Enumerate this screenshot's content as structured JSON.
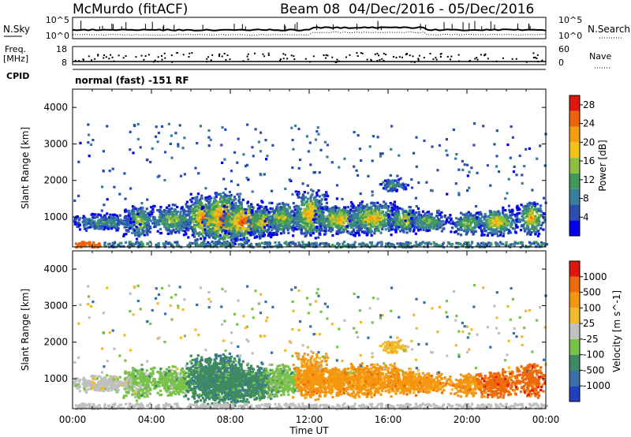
{
  "header": {
    "station": "McMurdo (fitACF)",
    "beam_title": "Beam 08  04/Dec/2016 - 05/Dec/2016",
    "mode": "normal (fast) -151 RF"
  },
  "side_labels": {
    "nsky": "N.Sky",
    "nsearch": "N.Search",
    "freq": "Freq.",
    "mhz": "[MHz]",
    "nave": "Nave",
    "cpid": "CPID"
  },
  "noise_ticks": {
    "left_top": "10^5",
    "left_bottom": "10^0",
    "right_top": "10^5",
    "right_bottom": "10^0"
  },
  "freq_ticks": {
    "left_top": "18",
    "left_bottom": "8",
    "right_top": "60",
    "right_bottom": "0"
  },
  "chart_data": [
    {
      "type": "heatmap",
      "name": "power",
      "xlabel": "Time UT",
      "ylabel": "Slant Range [km]",
      "xlim": [
        "00:00",
        "24:00"
      ],
      "ylim": [
        180,
        4500
      ],
      "x_ticks": [
        "00:00",
        "04:00",
        "08:00",
        "12:00",
        "16:00",
        "20:00",
        "00:00"
      ],
      "y_ticks": [
        1000,
        2000,
        3000,
        4000
      ],
      "colorbar": {
        "label": "Power [dB]",
        "ticks": [
          4,
          8,
          12,
          16,
          20,
          24,
          28
        ],
        "range": [
          0,
          30
        ],
        "colors": [
          "#0000ee",
          "#2a4fb0",
          "#3a7e9e",
          "#3f9a5a",
          "#8cbf40",
          "#f2c314",
          "#f59c0f",
          "#f0620a",
          "#e0150c"
        ]
      }
    },
    {
      "type": "heatmap",
      "name": "velocity",
      "xlabel": "Time UT",
      "ylabel": "Slant Range [km]",
      "xlim": [
        "00:00",
        "24:00"
      ],
      "ylim": [
        180,
        4500
      ],
      "x_ticks": [
        "00:00",
        "04:00",
        "08:00",
        "12:00",
        "16:00",
        "20:00",
        "00:00"
      ],
      "y_ticks": [
        1000,
        2000,
        3000,
        4000
      ],
      "colorbar": {
        "label": "Velocity [m s^-1]",
        "ticks": [
          "1000",
          "500",
          "100",
          "25",
          "-25",
          "-100",
          "-500",
          "-1000"
        ],
        "colors": [
          "#2040c0",
          "#3a6fa8",
          "#3e8a62",
          "#79c24a",
          "#c0c0c0",
          "#f2b92a",
          "#f5960f",
          "#ef6a0b",
          "#e0150c"
        ]
      }
    }
  ],
  "colors": {
    "grey_scatter": "#c0c0c0"
  }
}
